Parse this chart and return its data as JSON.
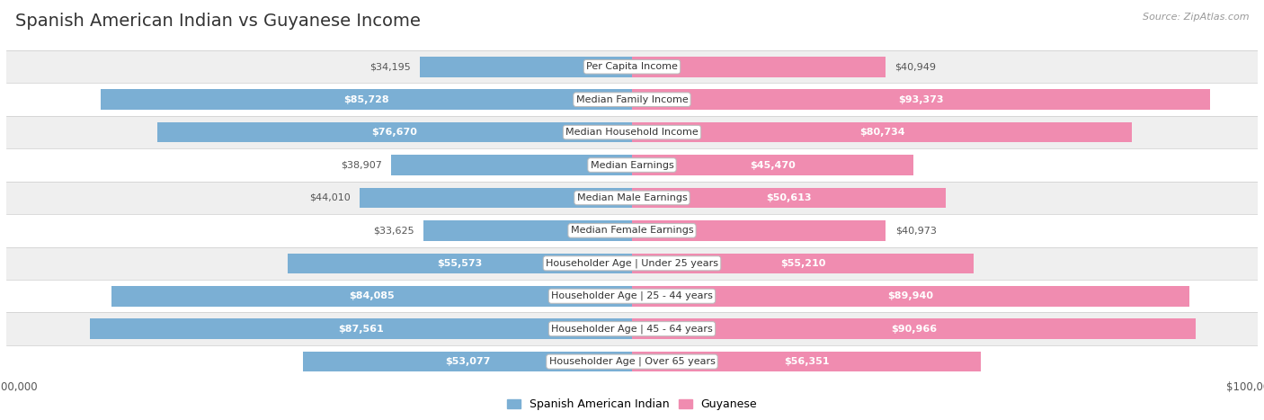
{
  "title": "Spanish American Indian vs Guyanese Income",
  "source": "Source: ZipAtlas.com",
  "categories": [
    "Per Capita Income",
    "Median Family Income",
    "Median Household Income",
    "Median Earnings",
    "Median Male Earnings",
    "Median Female Earnings",
    "Householder Age | Under 25 years",
    "Householder Age | 25 - 44 years",
    "Householder Age | 45 - 64 years",
    "Householder Age | Over 65 years"
  ],
  "spanish_values": [
    34195,
    85728,
    76670,
    38907,
    44010,
    33625,
    55573,
    84085,
    87561,
    53077
  ],
  "guyanese_values": [
    40949,
    93373,
    80734,
    45470,
    50613,
    40973,
    55210,
    89940,
    90966,
    56351
  ],
  "spanish_labels": [
    "$34,195",
    "$85,728",
    "$76,670",
    "$38,907",
    "$44,010",
    "$33,625",
    "$55,573",
    "$84,085",
    "$87,561",
    "$53,077"
  ],
  "guyanese_labels": [
    "$40,949",
    "$93,373",
    "$80,734",
    "$45,470",
    "$50,613",
    "$40,973",
    "$55,210",
    "$89,940",
    "$90,966",
    "$56,351"
  ],
  "max_value": 100000,
  "spanish_color": "#7bafd4",
  "guyanese_color": "#f08cb0",
  "bar_height": 0.62,
  "row_bg_even": "#efefef",
  "row_bg_odd": "#ffffff",
  "title_fontsize": 14,
  "label_fontsize": 8,
  "category_fontsize": 8,
  "legend_fontsize": 9,
  "inside_threshold": 45000
}
